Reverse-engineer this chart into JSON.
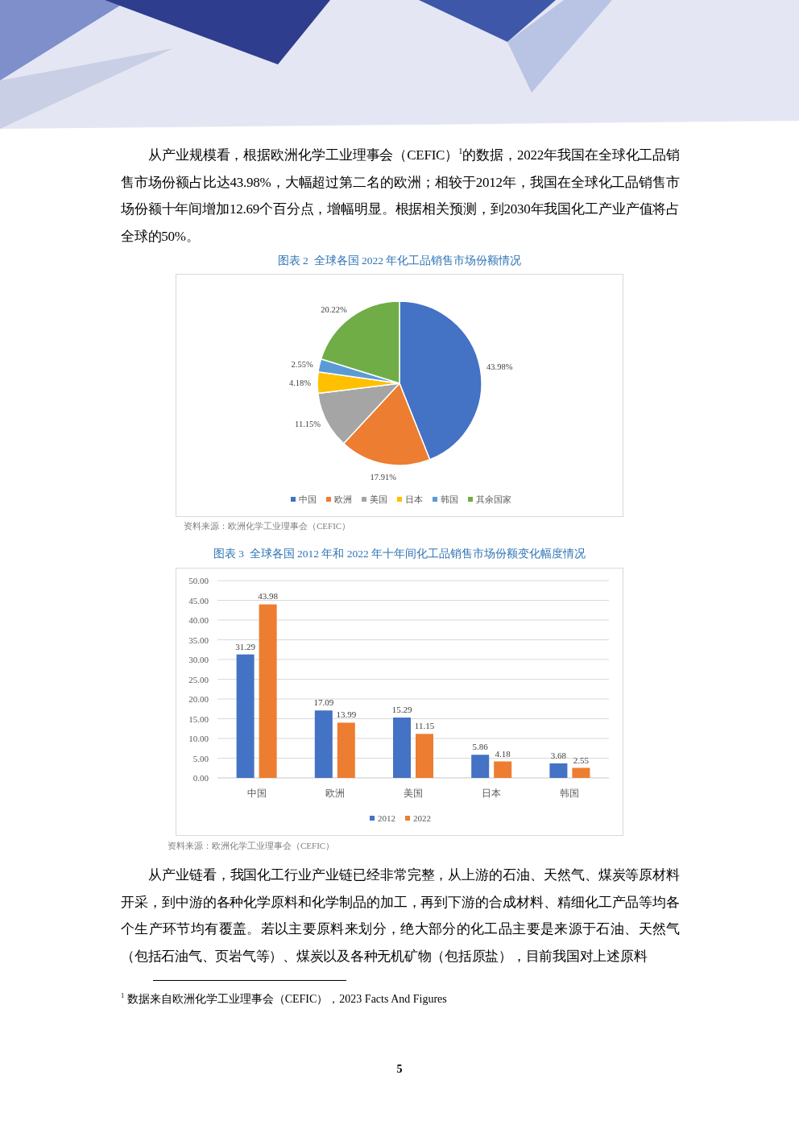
{
  "chart_data": [
    {
      "type": "other",
      "annotations": [
        "从产业规模看，根据欧洲化学工业理事会（CEFIC）$^{1}$的数据，2022年我国在全球化工品销售市场份额占比达43.98%，大幅超过第二名的欧洲；相较于2012年，我国在全球化工品销售市场份额十年间增加12.69个百分点，增幅明显。根据相关预测，到2030年我国化工产业产值将占全球的50%。"
      ]
    },
    {
      "type": "pie",
      "title": "图表 2  全球各国 2022 年化工品销售市场份额情况",
      "categories": [
        "中国",
        "欧洲",
        "美国",
        "日本",
        "韩国",
        "其余国家"
      ],
      "values": [
        43.98,
        17.91,
        11.15,
        4.18,
        2.55,
        20.22
      ],
      "colors": [
        "#4472c4",
        "#ed7d31",
        "#a5a5a5",
        "#ffc000",
        "#5b9bd5",
        "#70ad47"
      ],
      "value_labels": [
        "43.98%",
        "17.91%",
        "11.15%",
        "4.18%",
        "2.55%",
        "20.22%"
      ],
      "legend": "bottom",
      "annotations": [
        "资料来源：欧洲化学工业理事会（CEFIC）"
      ]
    },
    {
      "type": "bar",
      "title": "图表 3  全球各国 2012 年和 2022 年十年间化工品销售市场份额变化幅度情况",
      "categories": [
        "中国",
        "欧洲",
        "美国",
        "日本",
        "韩国"
      ],
      "series": [
        {
          "name": "2012",
          "color": "#4472c4",
          "values": [
            31.29,
            17.09,
            15.29,
            5.86,
            3.68
          ]
        },
        {
          "name": "2022",
          "color": "#ed7d31",
          "values": [
            43.98,
            13.99,
            11.15,
            4.18,
            2.55
          ]
        }
      ],
      "ylim": [
        0,
        50
      ],
      "yticks": [
        {
          "value": 0,
          "label": "0.00"
        },
        {
          "value": 5,
          "label": "5.00"
        },
        {
          "value": 10,
          "label": "10.00"
        },
        {
          "value": 15,
          "label": "15.00"
        },
        {
          "value": 20,
          "label": "20.00"
        },
        {
          "value": 25,
          "label": "25.00"
        },
        {
          "value": 30,
          "label": "30.00"
        },
        {
          "value": 35,
          "label": "35.00"
        },
        {
          "value": 40,
          "label": "40.00"
        },
        {
          "value": 45,
          "label": "45.00"
        },
        {
          "value": 50,
          "label": "50.00"
        }
      ],
      "grid": "y",
      "legend": "bottom",
      "data_labels": true,
      "annotations": [
        "资料来源：欧洲化学工业理事会（CEFIC）"
      ]
    },
    {
      "type": "other",
      "annotations": [
        "从产业链看，我国化工行业产业链已经非常完整，从上游的石油、天然气、煤炭等原材料开采，到中游的各种化学原料和化学制品的加工，再到下游的合成材料、精细化工产品等均各个生产环节均有覆盖。若以主要原料来划分，绝大部分的化工品主要是来源于石油、天然气（包括石油气、页岩气等）、煤炭以及各种无机矿物（包括原盐），目前我国对上述原料",
        "$^{1}$ 数据来自欧洲化学工业理事会（CEFIC），2023 Facts And Figures",
        "5"
      ]
    }
  ]
}
